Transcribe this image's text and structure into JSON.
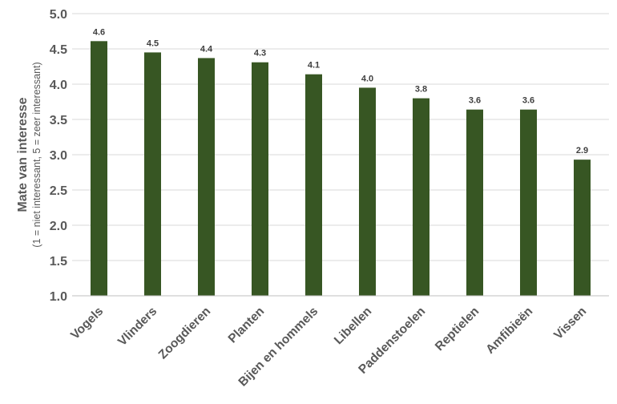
{
  "chart_data": {
    "type": "bar",
    "ylabel": "Mate van interesse",
    "ylabel_sub": "(1 = niet interessant, 5 = zeer interessant)",
    "ylim": [
      1.0,
      5.0
    ],
    "yticks": [
      "1.0",
      "1.5",
      "2.0",
      "2.5",
      "3.0",
      "3.5",
      "4.0",
      "4.5",
      "5.0"
    ],
    "grid": true,
    "bar_color": "#375623",
    "categories": [
      "Vogels",
      "Vlinders",
      "Zoogdieren",
      "Planten",
      "Bijen en hommels",
      "Libellen",
      "Paddenstoelen",
      "Reptielen",
      "Amfibieën",
      "Vissen"
    ],
    "values": [
      4.61,
      4.45,
      4.37,
      4.31,
      4.14,
      3.95,
      3.8,
      3.64,
      3.64,
      2.93
    ],
    "data_labels": [
      "4.6",
      "4.5",
      "4.4",
      "4.3",
      "4.1",
      "4.0",
      "3.8",
      "3.6",
      "3.6",
      "2.9"
    ]
  }
}
